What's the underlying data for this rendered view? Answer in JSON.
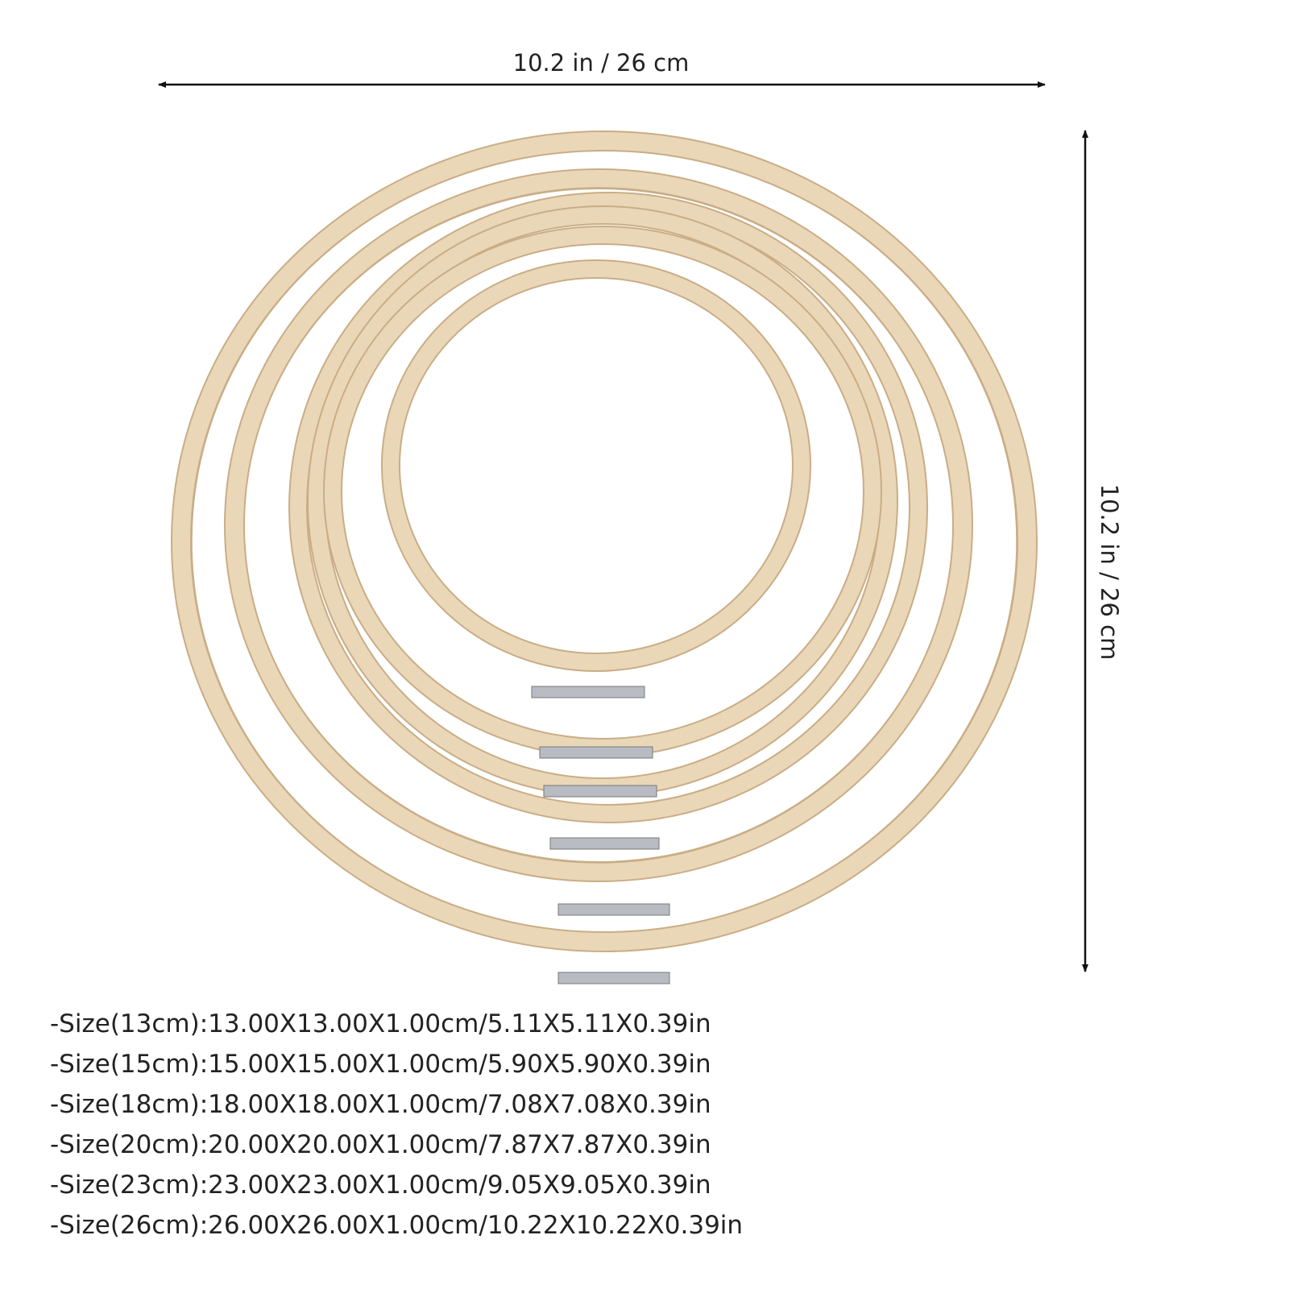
{
  "dimensions": {
    "width_label": "10.2 in / 26 cm",
    "height_label": "10.2 in / 26 cm"
  },
  "sizes": [
    "-Size(13cm):13.00X13.00X1.00cm/5.11X5.11X0.39in",
    "-Size(15cm):15.00X15.00X1.00cm/5.90X5.90X0.39in",
    "-Size(18cm):18.00X18.00X1.00cm/7.08X7.08X0.39in",
    "-Size(20cm):20.00X20.00X1.00cm/7.87X7.87X0.39in",
    "-Size(23cm):23.00X23.00X1.00cm/9.05X9.05X0.39in",
    "-Size(26cm):26.00X26.00X1.00cm/10.22X10.22X0.39in"
  ]
}
